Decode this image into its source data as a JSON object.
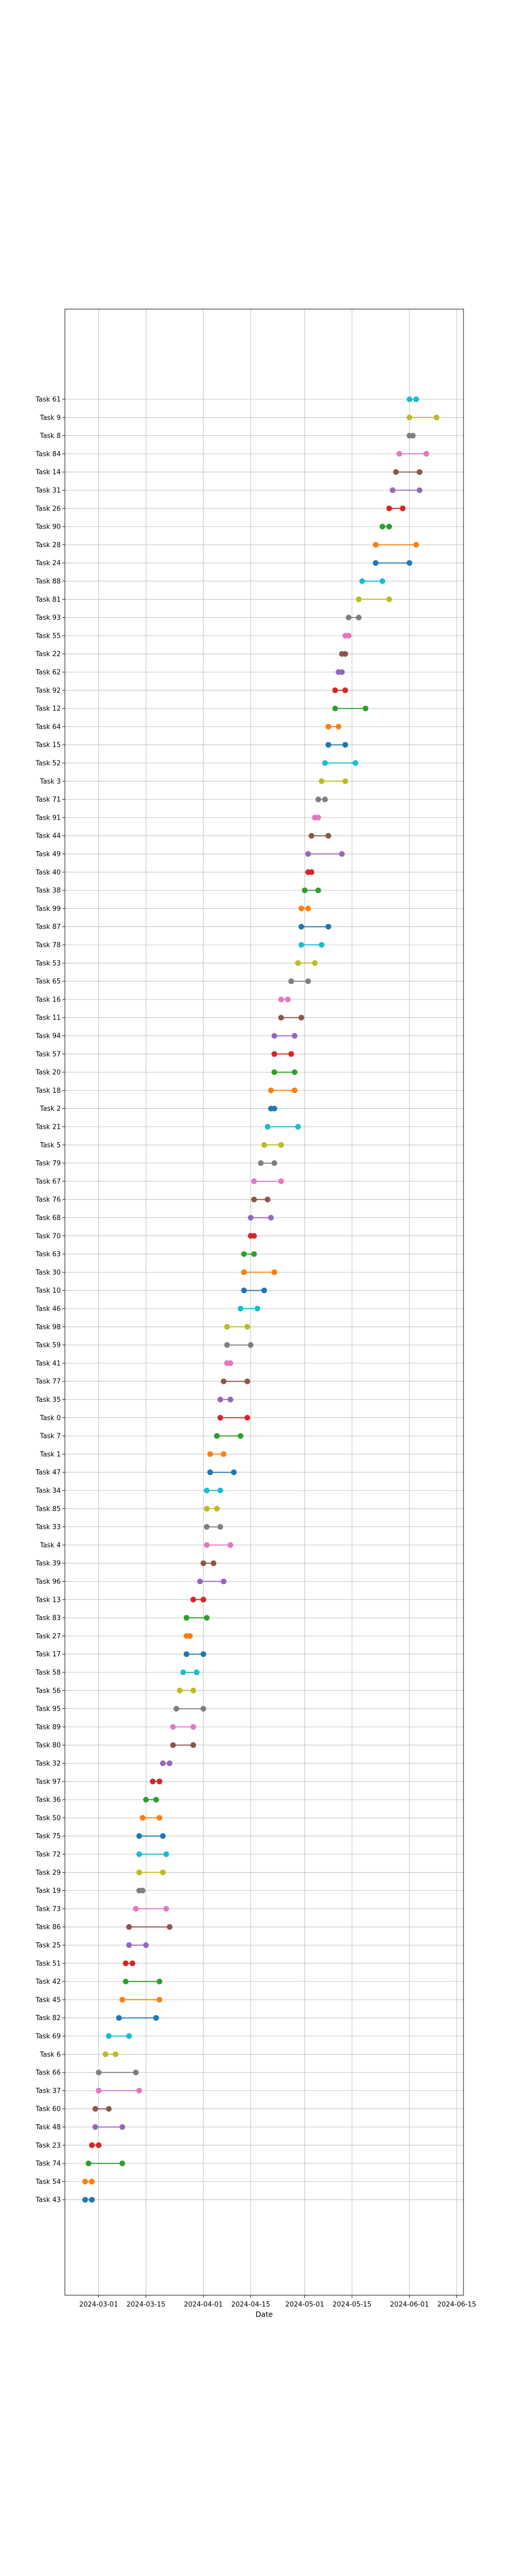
{
  "chart_data": {
    "type": "dumbbell",
    "title": "",
    "xlabel": "Date",
    "ylabel": "",
    "grid": true,
    "legend": "none",
    "x_domain": [
      "2024-02-20",
      "2024-06-17"
    ],
    "x_ticks": [
      "2024-03-01",
      "2024-03-15",
      "2024-04-01",
      "2024-04-15",
      "2024-05-01",
      "2024-05-15",
      "2024-06-01",
      "2024-06-15"
    ],
    "colors": [
      "#1f77b4",
      "#ff7f0e",
      "#2ca02c",
      "#d62728",
      "#9467bd",
      "#8c564b",
      "#e377c2",
      "#7f7f7f",
      "#bcbd22",
      "#17becf"
    ],
    "tasks": [
      {
        "name": "Task 43",
        "start": "2024-02-26",
        "end": "2024-02-28"
      },
      {
        "name": "Task 54",
        "start": "2024-02-26",
        "end": "2024-02-28"
      },
      {
        "name": "Task 74",
        "start": "2024-02-27",
        "end": "2024-03-08"
      },
      {
        "name": "Task 23",
        "start": "2024-02-28",
        "end": "2024-03-01"
      },
      {
        "name": "Task 48",
        "start": "2024-02-29",
        "end": "2024-03-08"
      },
      {
        "name": "Task 60",
        "start": "2024-02-29",
        "end": "2024-03-04"
      },
      {
        "name": "Task 37",
        "start": "2024-03-01",
        "end": "2024-03-13"
      },
      {
        "name": "Task 66",
        "start": "2024-03-01",
        "end": "2024-03-12"
      },
      {
        "name": "Task 6",
        "start": "2024-03-03",
        "end": "2024-03-06"
      },
      {
        "name": "Task 69",
        "start": "2024-03-04",
        "end": "2024-03-10"
      },
      {
        "name": "Task 82",
        "start": "2024-03-07",
        "end": "2024-03-18"
      },
      {
        "name": "Task 45",
        "start": "2024-03-08",
        "end": "2024-03-19"
      },
      {
        "name": "Task 42",
        "start": "2024-03-09",
        "end": "2024-03-19"
      },
      {
        "name": "Task 51",
        "start": "2024-03-09",
        "end": "2024-03-11"
      },
      {
        "name": "Task 25",
        "start": "2024-03-10",
        "end": "2024-03-15"
      },
      {
        "name": "Task 86",
        "start": "2024-03-10",
        "end": "2024-03-22"
      },
      {
        "name": "Task 73",
        "start": "2024-03-12",
        "end": "2024-03-21"
      },
      {
        "name": "Task 19",
        "start": "2024-03-13",
        "end": "2024-03-14"
      },
      {
        "name": "Task 29",
        "start": "2024-03-13",
        "end": "2024-03-20"
      },
      {
        "name": "Task 72",
        "start": "2024-03-13",
        "end": "2024-03-21"
      },
      {
        "name": "Task 75",
        "start": "2024-03-13",
        "end": "2024-03-20"
      },
      {
        "name": "Task 50",
        "start": "2024-03-14",
        "end": "2024-03-19"
      },
      {
        "name": "Task 36",
        "start": "2024-03-15",
        "end": "2024-03-18"
      },
      {
        "name": "Task 97",
        "start": "2024-03-17",
        "end": "2024-03-19"
      },
      {
        "name": "Task 32",
        "start": "2024-03-20",
        "end": "2024-03-22"
      },
      {
        "name": "Task 80",
        "start": "2024-03-23",
        "end": "2024-03-29"
      },
      {
        "name": "Task 89",
        "start": "2024-03-23",
        "end": "2024-03-29"
      },
      {
        "name": "Task 95",
        "start": "2024-03-24",
        "end": "2024-04-01"
      },
      {
        "name": "Task 56",
        "start": "2024-03-25",
        "end": "2024-03-29"
      },
      {
        "name": "Task 58",
        "start": "2024-03-26",
        "end": "2024-03-30"
      },
      {
        "name": "Task 17",
        "start": "2024-03-27",
        "end": "2024-04-01"
      },
      {
        "name": "Task 27",
        "start": "2024-03-27",
        "end": "2024-03-28"
      },
      {
        "name": "Task 83",
        "start": "2024-03-27",
        "end": "2024-04-02"
      },
      {
        "name": "Task 13",
        "start": "2024-03-29",
        "end": "2024-04-01"
      },
      {
        "name": "Task 96",
        "start": "2024-03-31",
        "end": "2024-04-07"
      },
      {
        "name": "Task 39",
        "start": "2024-04-01",
        "end": "2024-04-04"
      },
      {
        "name": "Task 4",
        "start": "2024-04-02",
        "end": "2024-04-09"
      },
      {
        "name": "Task 33",
        "start": "2024-04-02",
        "end": "2024-04-06"
      },
      {
        "name": "Task 85",
        "start": "2024-04-02",
        "end": "2024-04-05"
      },
      {
        "name": "Task 34",
        "start": "2024-04-02",
        "end": "2024-04-06"
      },
      {
        "name": "Task 47",
        "start": "2024-04-03",
        "end": "2024-04-10"
      },
      {
        "name": "Task 1",
        "start": "2024-04-03",
        "end": "2024-04-07"
      },
      {
        "name": "Task 7",
        "start": "2024-04-05",
        "end": "2024-04-12"
      },
      {
        "name": "Task 0",
        "start": "2024-04-06",
        "end": "2024-04-14"
      },
      {
        "name": "Task 35",
        "start": "2024-04-06",
        "end": "2024-04-09"
      },
      {
        "name": "Task 77",
        "start": "2024-04-07",
        "end": "2024-04-14"
      },
      {
        "name": "Task 41",
        "start": "2024-04-08",
        "end": "2024-04-09"
      },
      {
        "name": "Task 59",
        "start": "2024-04-08",
        "end": "2024-04-15"
      },
      {
        "name": "Task 98",
        "start": "2024-04-08",
        "end": "2024-04-14"
      },
      {
        "name": "Task 46",
        "start": "2024-04-12",
        "end": "2024-04-17"
      },
      {
        "name": "Task 10",
        "start": "2024-04-13",
        "end": "2024-04-19"
      },
      {
        "name": "Task 30",
        "start": "2024-04-13",
        "end": "2024-04-22"
      },
      {
        "name": "Task 63",
        "start": "2024-04-13",
        "end": "2024-04-16"
      },
      {
        "name": "Task 70",
        "start": "2024-04-15",
        "end": "2024-04-16"
      },
      {
        "name": "Task 68",
        "start": "2024-04-15",
        "end": "2024-04-21"
      },
      {
        "name": "Task 76",
        "start": "2024-04-16",
        "end": "2024-04-20"
      },
      {
        "name": "Task 67",
        "start": "2024-04-16",
        "end": "2024-04-24"
      },
      {
        "name": "Task 79",
        "start": "2024-04-18",
        "end": "2024-04-22"
      },
      {
        "name": "Task 5",
        "start": "2024-04-19",
        "end": "2024-04-24"
      },
      {
        "name": "Task 21",
        "start": "2024-04-20",
        "end": "2024-04-29"
      },
      {
        "name": "Task 2",
        "start": "2024-04-21",
        "end": "2024-04-22"
      },
      {
        "name": "Task 18",
        "start": "2024-04-21",
        "end": "2024-04-28"
      },
      {
        "name": "Task 20",
        "start": "2024-04-22",
        "end": "2024-04-28"
      },
      {
        "name": "Task 57",
        "start": "2024-04-22",
        "end": "2024-04-27"
      },
      {
        "name": "Task 94",
        "start": "2024-04-22",
        "end": "2024-04-28"
      },
      {
        "name": "Task 11",
        "start": "2024-04-24",
        "end": "2024-04-30"
      },
      {
        "name": "Task 16",
        "start": "2024-04-24",
        "end": "2024-04-26"
      },
      {
        "name": "Task 65",
        "start": "2024-04-27",
        "end": "2024-05-02"
      },
      {
        "name": "Task 53",
        "start": "2024-04-29",
        "end": "2024-05-04"
      },
      {
        "name": "Task 78",
        "start": "2024-04-30",
        "end": "2024-05-06"
      },
      {
        "name": "Task 87",
        "start": "2024-04-30",
        "end": "2024-05-08"
      },
      {
        "name": "Task 99",
        "start": "2024-04-30",
        "end": "2024-05-02"
      },
      {
        "name": "Task 38",
        "start": "2024-05-01",
        "end": "2024-05-05"
      },
      {
        "name": "Task 40",
        "start": "2024-05-02",
        "end": "2024-05-03"
      },
      {
        "name": "Task 49",
        "start": "2024-05-02",
        "end": "2024-05-12"
      },
      {
        "name": "Task 44",
        "start": "2024-05-03",
        "end": "2024-05-08"
      },
      {
        "name": "Task 91",
        "start": "2024-05-04",
        "end": "2024-05-05"
      },
      {
        "name": "Task 71",
        "start": "2024-05-05",
        "end": "2024-05-07"
      },
      {
        "name": "Task 3",
        "start": "2024-05-06",
        "end": "2024-05-13"
      },
      {
        "name": "Task 52",
        "start": "2024-05-07",
        "end": "2024-05-16"
      },
      {
        "name": "Task 15",
        "start": "2024-05-08",
        "end": "2024-05-13"
      },
      {
        "name": "Task 64",
        "start": "2024-05-08",
        "end": "2024-05-11"
      },
      {
        "name": "Task 12",
        "start": "2024-05-10",
        "end": "2024-05-19"
      },
      {
        "name": "Task 92",
        "start": "2024-05-10",
        "end": "2024-05-13"
      },
      {
        "name": "Task 62",
        "start": "2024-05-11",
        "end": "2024-05-12"
      },
      {
        "name": "Task 22",
        "start": "2024-05-12",
        "end": "2024-05-13"
      },
      {
        "name": "Task 55",
        "start": "2024-05-13",
        "end": "2024-05-14"
      },
      {
        "name": "Task 93",
        "start": "2024-05-14",
        "end": "2024-05-17"
      },
      {
        "name": "Task 81",
        "start": "2024-05-17",
        "end": "2024-05-26"
      },
      {
        "name": "Task 88",
        "start": "2024-05-18",
        "end": "2024-05-24"
      },
      {
        "name": "Task 24",
        "start": "2024-05-22",
        "end": "2024-06-01"
      },
      {
        "name": "Task 28",
        "start": "2024-05-22",
        "end": "2024-06-03"
      },
      {
        "name": "Task 90",
        "start": "2024-05-24",
        "end": "2024-05-26"
      },
      {
        "name": "Task 26",
        "start": "2024-05-26",
        "end": "2024-05-30"
      },
      {
        "name": "Task 31",
        "start": "2024-05-27",
        "end": "2024-06-04"
      },
      {
        "name": "Task 14",
        "start": "2024-05-28",
        "end": "2024-06-04"
      },
      {
        "name": "Task 84",
        "start": "2024-05-29",
        "end": "2024-06-06"
      },
      {
        "name": "Task 8",
        "start": "2024-06-01",
        "end": "2024-06-02"
      },
      {
        "name": "Task 9",
        "start": "2024-06-01",
        "end": "2024-06-09"
      },
      {
        "name": "Task 61",
        "start": "2024-06-01",
        "end": "2024-06-03"
      }
    ]
  }
}
